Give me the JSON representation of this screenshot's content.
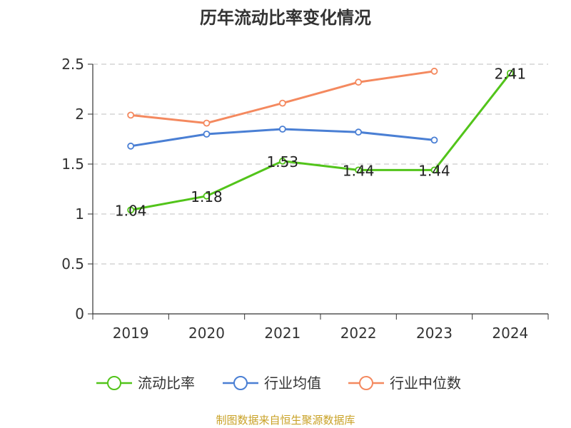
{
  "chart_data": {
    "type": "line",
    "title": "历年流动比率变化情况",
    "xlabel": "",
    "ylabel": "",
    "categories": [
      "2019",
      "2020",
      "2021",
      "2022",
      "2023",
      "2024"
    ],
    "ylim": [
      0,
      2.5
    ],
    "yticks": [
      "0",
      "0.5",
      "1",
      "1.5",
      "2",
      "2.5"
    ],
    "grid": true,
    "legend_position": "bottom",
    "series": [
      {
        "name": "流动比率",
        "color": "#52c41a",
        "values": [
          1.04,
          1.18,
          1.53,
          1.44,
          1.44,
          2.41
        ],
        "labels": [
          "1.04",
          "1.18",
          "1.53",
          "1.44",
          "1.44",
          "2.41"
        ]
      },
      {
        "name": "行业均值",
        "color": "#4a7fd4",
        "values": [
          1.68,
          1.8,
          1.85,
          1.82,
          1.74,
          null
        ]
      },
      {
        "name": "行业中位数",
        "color": "#f4895f",
        "values": [
          1.99,
          1.91,
          2.11,
          2.32,
          2.43,
          null
        ]
      }
    ]
  },
  "source_text": "制图数据来自恒生聚源数据库",
  "colors": {
    "source": "#c9a227",
    "grid": "#cccccc",
    "axis": "#333333"
  }
}
